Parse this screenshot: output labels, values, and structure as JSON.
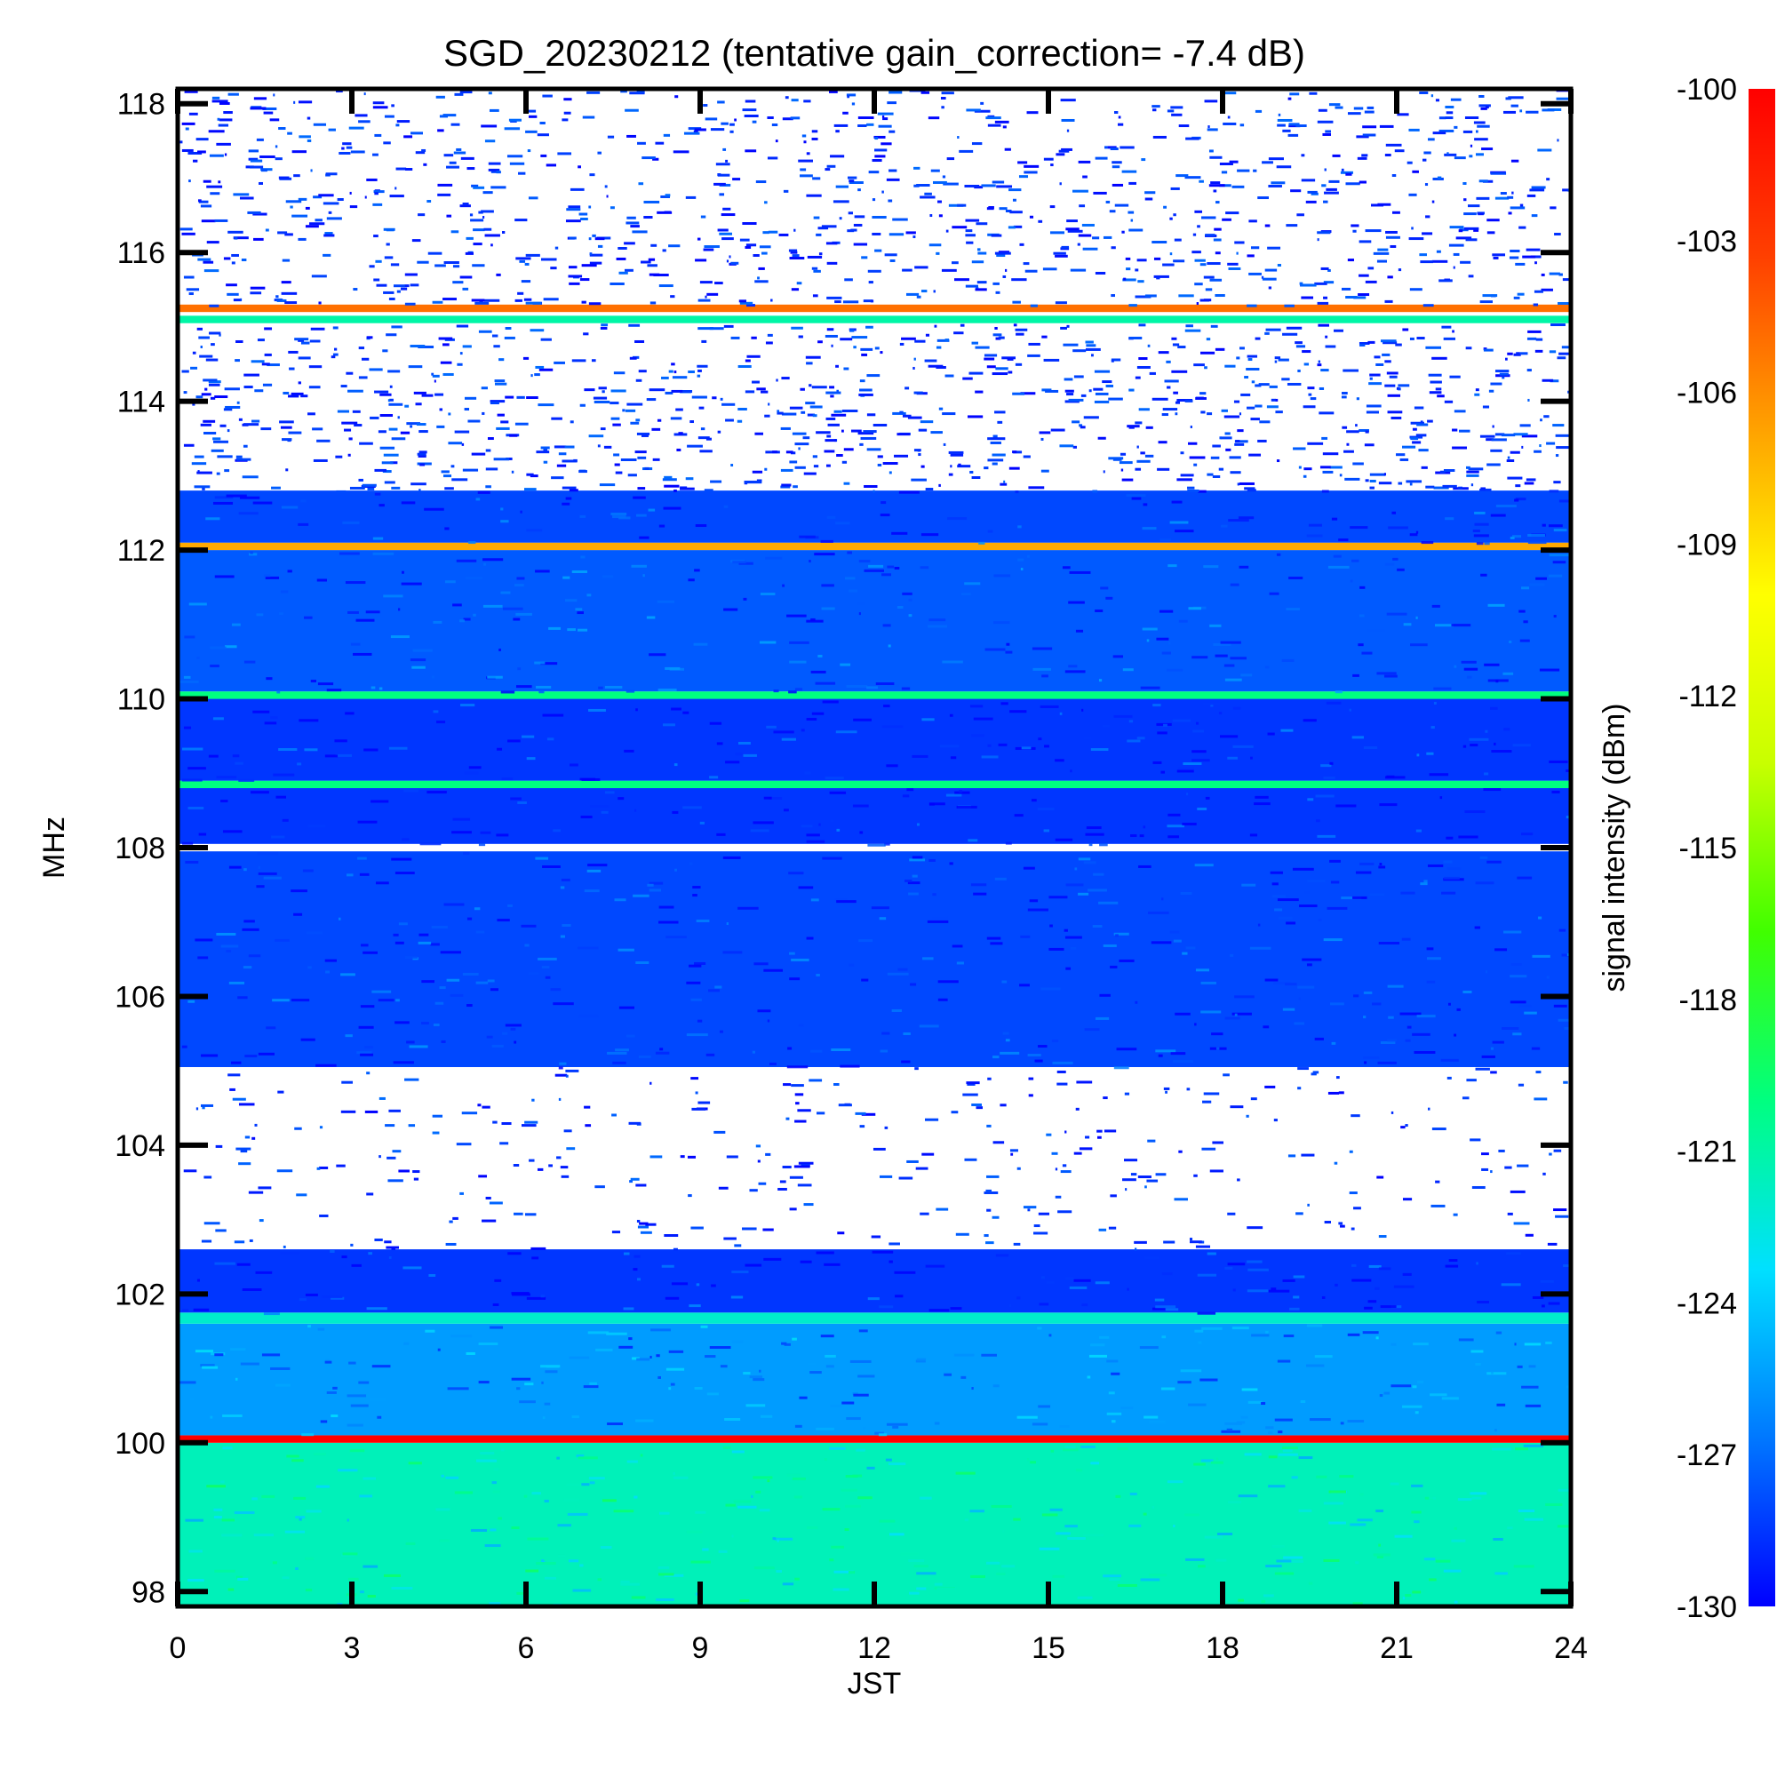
{
  "chart_data": {
    "type": "heatmap",
    "title": "SGD_20230212 (tentative gain_correction= -7.4 dB)",
    "xlabel": "JST",
    "ylabel": "MHz",
    "colorbar_label": "signal intensity (dBm)",
    "xlim": [
      0,
      24
    ],
    "ylim": [
      97.8,
      118.2
    ],
    "x_ticks": [
      "0",
      "3",
      "6",
      "9",
      "12",
      "15",
      "18",
      "21",
      "24"
    ],
    "y_ticks": [
      "98",
      "100",
      "102",
      "104",
      "106",
      "108",
      "110",
      "112",
      "114",
      "116",
      "118"
    ],
    "colorbar_range": [
      -130,
      -100
    ],
    "colorbar_ticks": [
      "-100",
      "-103",
      "-106",
      "-109",
      "-112",
      "-115",
      "-118",
      "-121",
      "-124",
      "-127",
      "-130"
    ],
    "colormap": [
      "#0000ff",
      "#0078ff",
      "#00e0ff",
      "#00ff80",
      "#40ff00",
      "#c8ff00",
      "#ffff00",
      "#ffa000",
      "#ff4000",
      "#ff0000"
    ],
    "bands": [
      {
        "f_start": 97.8,
        "f_end": 100.0,
        "dbm": -121.5
      },
      {
        "f_start": 100.0,
        "f_end": 100.1,
        "dbm": -100
      },
      {
        "f_start": 100.1,
        "f_end": 101.6,
        "dbm": -125.5
      },
      {
        "f_start": 101.6,
        "f_end": 101.75,
        "dbm": -122
      },
      {
        "f_start": 101.75,
        "f_end": 102.6,
        "dbm": -128.5
      },
      {
        "f_start": 105.05,
        "f_end": 107.95,
        "dbm": -128
      },
      {
        "f_start": 108.05,
        "f_end": 108.8,
        "dbm": -128.5
      },
      {
        "f_start": 108.8,
        "f_end": 108.9,
        "dbm": -120
      },
      {
        "f_start": 108.9,
        "f_end": 110.0,
        "dbm": -128.5
      },
      {
        "f_start": 110.0,
        "f_end": 110.1,
        "dbm": -120
      },
      {
        "f_start": 110.1,
        "f_end": 112.0,
        "dbm": -127.5
      },
      {
        "f_start": 112.0,
        "f_end": 112.1,
        "dbm": -107
      },
      {
        "f_start": 112.1,
        "f_end": 112.8,
        "dbm": -128
      },
      {
        "f_start": 115.05,
        "f_end": 115.15,
        "dbm": -121
      },
      {
        "f_start": 115.2,
        "f_end": 115.3,
        "dbm": -105
      }
    ]
  }
}
